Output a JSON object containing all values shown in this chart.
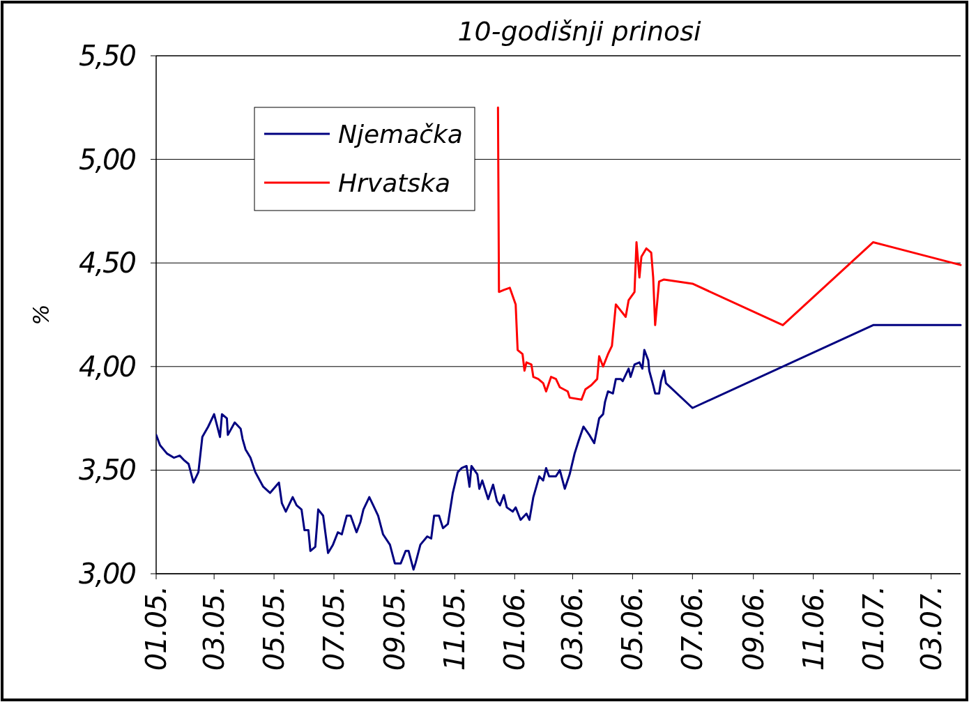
{
  "chart_data": {
    "type": "line",
    "title": "10-godišnji prinosi",
    "ylabel": "%",
    "xlim": [
      "2005-01-01",
      "2007-03-31"
    ],
    "ylim": [
      3,
      5.5
    ],
    "xticks": [
      {
        "value": "2005-01-01",
        "label": "01.05."
      },
      {
        "value": "2005-03-01",
        "label": "03.05."
      },
      {
        "value": "2005-05-01",
        "label": "05.05."
      },
      {
        "value": "2005-07-01",
        "label": "07.05."
      },
      {
        "value": "2005-09-01",
        "label": "09.05."
      },
      {
        "value": "2005-11-01",
        "label": "11.05."
      },
      {
        "value": "2006-01-01",
        "label": "01.06."
      },
      {
        "value": "2006-03-01",
        "label": "03.06."
      },
      {
        "value": "2006-05-01",
        "label": "05.06."
      },
      {
        "value": "2006-07-01",
        "label": "07.06."
      },
      {
        "value": "2006-09-01",
        "label": "09.06."
      },
      {
        "value": "2006-11-01",
        "label": "11.06."
      },
      {
        "value": "2007-01-01",
        "label": "01.07."
      },
      {
        "value": "2007-03-01",
        "label": "03.07."
      }
    ],
    "yticks": [
      {
        "value": 3,
        "label": "3,00"
      },
      {
        "value": 3.5,
        "label": "3,50"
      },
      {
        "value": 4,
        "label": "4,00"
      },
      {
        "value": 4.5,
        "label": "4,50"
      },
      {
        "value": 5,
        "label": "5,00"
      },
      {
        "value": 5.5,
        "label": "5,50"
      }
    ],
    "grid": "y",
    "legend": "top left",
    "marker": "none",
    "line_style": "solid",
    "series": [
      {
        "name": "Njemačka",
        "color": "#000080",
        "x": [
          "2005-01-01",
          "2005-01-05",
          "2005-01-12",
          "2005-01-19",
          "2005-01-25",
          "2005-01-29",
          "2005-02-03",
          "2005-02-08",
          "2005-02-13",
          "2005-02-17",
          "2005-02-23",
          "2005-03-01",
          "2005-03-07",
          "2005-03-09",
          "2005-03-14",
          "2005-03-15",
          "2005-03-22",
          "2005-03-28",
          "2005-03-30",
          "2005-04-02",
          "2005-04-07",
          "2005-04-12",
          "2005-04-20",
          "2005-04-27",
          "2005-05-06",
          "2005-05-09",
          "2005-05-13",
          "2005-05-20",
          "2005-05-24",
          "2005-05-29",
          "2005-06-01",
          "2005-06-05",
          "2005-06-07",
          "2005-06-12",
          "2005-06-15",
          "2005-06-20",
          "2005-06-25",
          "2005-06-30",
          "2005-07-05",
          "2005-07-09",
          "2005-07-14",
          "2005-07-18",
          "2005-07-24",
          "2005-07-28",
          "2005-07-31",
          "2005-08-06",
          "2005-08-10",
          "2005-08-15",
          "2005-08-20",
          "2005-08-27",
          "2005-09-01",
          "2005-09-07",
          "2005-09-12",
          "2005-09-15",
          "2005-09-20",
          "2005-09-22",
          "2005-09-27",
          "2005-10-04",
          "2005-10-08",
          "2005-10-11",
          "2005-10-16",
          "2005-10-20",
          "2005-10-25",
          "2005-10-30",
          "2005-11-04",
          "2005-11-08",
          "2005-11-13",
          "2005-11-16",
          "2005-11-18",
          "2005-11-24",
          "2005-11-26",
          "2005-11-29",
          "2005-12-05",
          "2005-12-10",
          "2005-12-14",
          "2005-12-17",
          "2005-12-21",
          "2005-12-24",
          "2005-12-30",
          "2006-01-02",
          "2006-01-07",
          "2006-01-13",
          "2006-01-16",
          "2006-01-20",
          "2006-01-26",
          "2006-01-30",
          "2006-02-02",
          "2006-02-05",
          "2006-02-12",
          "2006-02-16",
          "2006-02-21",
          "2006-02-26",
          "2006-02-28",
          "2006-03-03",
          "2006-03-07",
          "2006-03-12",
          "2006-03-18",
          "2006-03-23",
          "2006-03-28",
          "2006-04-01",
          "2006-04-03",
          "2006-04-06",
          "2006-04-11",
          "2006-04-14",
          "2006-04-19",
          "2006-04-21",
          "2006-04-27",
          "2006-04-29",
          "2006-05-03",
          "2006-05-08",
          "2006-05-11",
          "2006-05-13",
          "2006-05-17",
          "2006-05-18",
          "2006-05-22",
          "2006-05-24",
          "2006-05-28",
          "2006-05-30",
          "2006-06-02",
          "2006-06-04",
          "2006-07-01",
          "2007-01-01",
          "2007-03-31"
        ],
        "values": [
          3.67,
          3.62,
          3.58,
          3.56,
          3.57,
          3.55,
          3.53,
          3.44,
          3.49,
          3.66,
          3.71,
          3.77,
          3.66,
          3.77,
          3.75,
          3.67,
          3.73,
          3.7,
          3.65,
          3.6,
          3.56,
          3.49,
          3.42,
          3.39,
          3.44,
          3.34,
          3.3,
          3.37,
          3.33,
          3.31,
          3.21,
          3.21,
          3.11,
          3.13,
          3.31,
          3.28,
          3.1,
          3.14,
          3.2,
          3.19,
          3.28,
          3.28,
          3.2,
          3.25,
          3.31,
          3.37,
          3.33,
          3.28,
          3.19,
          3.14,
          3.05,
          3.05,
          3.11,
          3.11,
          3.02,
          3.05,
          3.14,
          3.18,
          3.17,
          3.28,
          3.28,
          3.22,
          3.24,
          3.39,
          3.49,
          3.51,
          3.52,
          3.42,
          3.52,
          3.48,
          3.41,
          3.45,
          3.36,
          3.43,
          3.35,
          3.33,
          3.38,
          3.32,
          3.3,
          3.32,
          3.26,
          3.29,
          3.26,
          3.37,
          3.47,
          3.45,
          3.51,
          3.47,
          3.47,
          3.5,
          3.41,
          3.48,
          3.52,
          3.58,
          3.64,
          3.71,
          3.67,
          3.63,
          3.75,
          3.77,
          3.83,
          3.88,
          3.87,
          3.94,
          3.94,
          3.93,
          3.99,
          3.95,
          4.01,
          4.02,
          3.99,
          4.08,
          4.03,
          3.98,
          3.91,
          3.87,
          3.87,
          3.93,
          3.98,
          3.92,
          3.8,
          4.2,
          4.2
        ]
      },
      {
        "name": "Hrvatska",
        "color": "#ff0000",
        "x": [
          "2005-12-15",
          "2005-12-16",
          "2005-12-21",
          "2005-12-27",
          "2005-12-30",
          "2006-01-02",
          "2006-01-04",
          "2006-01-09",
          "2006-01-11",
          "2006-01-13",
          "2006-01-18",
          "2006-01-20",
          "2006-01-25",
          "2006-01-30",
          "2006-02-02",
          "2006-02-07",
          "2006-02-12",
          "2006-02-16",
          "2006-02-24",
          "2006-02-26",
          "2006-03-10",
          "2006-03-14",
          "2006-03-20",
          "2006-03-26",
          "2006-03-28",
          "2006-04-01",
          "2006-04-06",
          "2006-04-10",
          "2006-04-14",
          "2006-04-19",
          "2006-04-24",
          "2006-04-27",
          "2006-05-03",
          "2006-05-05",
          "2006-05-08",
          "2006-05-10",
          "2006-05-15",
          "2006-05-20",
          "2006-05-22",
          "2006-05-24",
          "2006-05-28",
          "2006-06-02",
          "2006-07-01",
          "2006-10-01",
          "2007-01-01",
          "2007-03-31"
        ],
        "values": [
          5.25,
          4.36,
          4.37,
          4.38,
          4.34,
          4.3,
          4.08,
          4.06,
          3.98,
          4.02,
          4.01,
          3.95,
          3.94,
          3.92,
          3.88,
          3.95,
          3.94,
          3.9,
          3.88,
          3.85,
          3.84,
          3.89,
          3.91,
          3.94,
          4.05,
          4.0,
          4.06,
          4.1,
          4.3,
          4.27,
          4.24,
          4.32,
          4.36,
          4.6,
          4.43,
          4.53,
          4.57,
          4.55,
          4.43,
          4.2,
          4.41,
          4.42,
          4.4,
          4.2,
          4.6,
          4.49
        ]
      }
    ]
  }
}
